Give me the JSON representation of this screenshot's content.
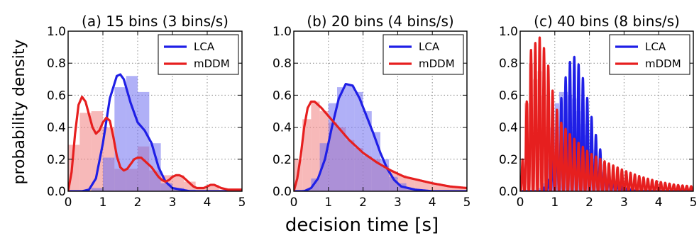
{
  "figure": {
    "ylabel": "probability density",
    "xlabel": "decision time [s]",
    "colors": {
      "LCA": "#1f1fe6",
      "mDDM": "#e61f1f",
      "LCA_fill": "#7070f0",
      "mDDM_fill": "#f08080"
    }
  },
  "chart_data": [
    {
      "type": "area",
      "title": "(a) 15 bins (3 bins/s)",
      "xlim": [
        0,
        5
      ],
      "ylim": [
        0,
        1.0
      ],
      "xticks": [
        "0",
        "1",
        "2",
        "3",
        "4",
        "5"
      ],
      "yticks": [
        "0.0",
        "0.2",
        "0.4",
        "0.6",
        "0.8",
        "1.0"
      ],
      "grid": true,
      "legend": "top-right",
      "histograms": [
        {
          "name": "mDDM",
          "bin_width": 0.3333,
          "x0": 0,
          "values": [
            0.29,
            0.49,
            0.5,
            0.4,
            0.14,
            0.14,
            0.28,
            0.13,
            0.1,
            0.1,
            0.06,
            0.02,
            0.04,
            0.01,
            0.01
          ]
        },
        {
          "name": "LCA",
          "bin_width": 0.3333,
          "x0": 0,
          "values": [
            0.0,
            0.0,
            0.02,
            0.21,
            0.65,
            0.72,
            0.62,
            0.3,
            0.05,
            0.02,
            0.01,
            0.0,
            0.0,
            0.0,
            0.0
          ]
        }
      ],
      "series": [
        {
          "name": "LCA",
          "x": [
            0.0,
            0.4,
            0.6,
            0.8,
            1.0,
            1.2,
            1.4,
            1.5,
            1.6,
            1.8,
            2.0,
            2.2,
            2.4,
            2.6,
            2.8,
            3.0,
            3.5,
            4.0,
            5.0
          ],
          "y": [
            0.0,
            0.0,
            0.01,
            0.08,
            0.3,
            0.58,
            0.72,
            0.73,
            0.7,
            0.55,
            0.43,
            0.38,
            0.3,
            0.15,
            0.06,
            0.02,
            0.0,
            0.0,
            0.0
          ]
        },
        {
          "name": "mDDM",
          "x": [
            0.0,
            0.1,
            0.2,
            0.3,
            0.4,
            0.5,
            0.6,
            0.7,
            0.8,
            0.9,
            1.0,
            1.1,
            1.2,
            1.3,
            1.4,
            1.5,
            1.6,
            1.7,
            1.8,
            1.9,
            2.0,
            2.1,
            2.2,
            2.3,
            2.4,
            2.5,
            2.6,
            2.7,
            2.8,
            2.9,
            3.0,
            3.1,
            3.2,
            3.3,
            3.4,
            3.5,
            3.6,
            3.7,
            3.8,
            3.9,
            4.0,
            4.1,
            4.2,
            4.4,
            4.6,
            4.8,
            5.0
          ],
          "y": [
            0.0,
            0.12,
            0.36,
            0.54,
            0.59,
            0.56,
            0.48,
            0.4,
            0.36,
            0.38,
            0.43,
            0.46,
            0.44,
            0.34,
            0.22,
            0.15,
            0.13,
            0.14,
            0.17,
            0.2,
            0.21,
            0.21,
            0.19,
            0.17,
            0.15,
            0.12,
            0.09,
            0.07,
            0.06,
            0.07,
            0.09,
            0.1,
            0.1,
            0.09,
            0.07,
            0.05,
            0.03,
            0.02,
            0.02,
            0.02,
            0.03,
            0.04,
            0.04,
            0.02,
            0.01,
            0.01,
            0.01
          ]
        }
      ]
    },
    {
      "type": "area",
      "title": "(b) 20 bins (4 bins/s)",
      "xlim": [
        0,
        5
      ],
      "ylim": [
        0,
        1.0
      ],
      "xticks": [
        "0",
        "1",
        "2",
        "3",
        "4",
        "5"
      ],
      "yticks": [
        "0.0",
        "0.2",
        "0.4",
        "0.6",
        "0.8",
        "1.0"
      ],
      "grid": true,
      "legend": "top-right",
      "histograms": [
        {
          "name": "mDDM",
          "bin_width": 0.25,
          "x0": 0,
          "values": [
            0.2,
            0.45,
            0.56,
            0.5,
            0.43,
            0.4,
            0.32,
            0.27,
            0.22,
            0.2,
            0.16,
            0.12,
            0.1,
            0.08,
            0.07,
            0.06,
            0.05,
            0.04,
            0.03,
            0.02
          ]
        },
        {
          "name": "LCA",
          "bin_width": 0.25,
          "x0": 0,
          "values": [
            0.0,
            0.01,
            0.08,
            0.3,
            0.55,
            0.65,
            0.66,
            0.62,
            0.5,
            0.37,
            0.2,
            0.09,
            0.05,
            0.02,
            0.01,
            0.0,
            0.0,
            0.0,
            0.0,
            0.0
          ]
        }
      ],
      "series": [
        {
          "name": "LCA",
          "x": [
            0.0,
            0.3,
            0.5,
            0.7,
            0.9,
            1.1,
            1.3,
            1.5,
            1.7,
            1.9,
            2.1,
            2.3,
            2.5,
            2.7,
            2.9,
            3.1,
            3.5,
            4.0,
            5.0
          ],
          "y": [
            0.0,
            0.0,
            0.02,
            0.08,
            0.2,
            0.4,
            0.58,
            0.67,
            0.66,
            0.58,
            0.47,
            0.36,
            0.24,
            0.14,
            0.07,
            0.03,
            0.01,
            0.0,
            0.0
          ]
        },
        {
          "name": "mDDM",
          "x": [
            0.0,
            0.1,
            0.2,
            0.3,
            0.4,
            0.5,
            0.6,
            0.8,
            1.0,
            1.2,
            1.4,
            1.6,
            1.8,
            2.0,
            2.4,
            2.8,
            3.2,
            3.6,
            4.0,
            4.5,
            5.0
          ],
          "y": [
            0.0,
            0.08,
            0.22,
            0.4,
            0.52,
            0.56,
            0.56,
            0.52,
            0.47,
            0.42,
            0.37,
            0.32,
            0.28,
            0.24,
            0.18,
            0.13,
            0.09,
            0.07,
            0.05,
            0.03,
            0.02
          ]
        }
      ]
    },
    {
      "type": "area",
      "title": "(c) 40 bins (8 bins/s)",
      "xlim": [
        0,
        5
      ],
      "ylim": [
        0,
        1.0
      ],
      "xticks": [
        "0",
        "1",
        "2",
        "3",
        "4",
        "5"
      ],
      "yticks": [
        "0.0",
        "0.2",
        "0.4",
        "0.6",
        "0.8",
        "1.0"
      ],
      "grid": true,
      "legend": "top-right",
      "histograms": [
        {
          "name": "mDDM",
          "bin_width": 0.125,
          "x0": 0,
          "values": [
            0.1,
            0.55,
            0.8,
            0.7,
            0.75,
            0.6,
            0.4,
            0.3,
            0.4,
            0.3,
            0.22,
            0.18,
            0.2,
            0.16,
            0.15,
            0.12,
            0.1,
            0.09,
            0.08,
            0.07,
            0.06,
            0.05,
            0.05,
            0.04,
            0.04,
            0.03,
            0.03,
            0.03,
            0.02,
            0.02,
            0.02,
            0.02,
            0.01,
            0.01,
            0.01,
            0.01,
            0.01,
            0.01,
            0.01,
            0.01
          ]
        },
        {
          "name": "LCA",
          "bin_width": 0.125,
          "x0": 0,
          "values": [
            0,
            0,
            0,
            0,
            0.02,
            0.05,
            0.2,
            0.4,
            0.55,
            0.62,
            0.62,
            0.6,
            0.58,
            0.5,
            0.42,
            0.35,
            0.26,
            0.2,
            0.12,
            0.08,
            0.04,
            0.02,
            0.01,
            0,
            0,
            0,
            0,
            0,
            0,
            0,
            0,
            0,
            0,
            0,
            0,
            0,
            0,
            0,
            0,
            0
          ]
        }
      ],
      "series": [
        {
          "name": "LCA",
          "model": "oscillating",
          "x": [
            0.0,
            0.6,
            0.8,
            1.0,
            1.2,
            1.4,
            1.6,
            1.8,
            2.0,
            2.2,
            2.4,
            2.6,
            2.8,
            3.0,
            3.4,
            4.0,
            5.0
          ],
          "y": [
            0.0,
            0.0,
            0.05,
            0.3,
            0.6,
            0.8,
            0.85,
            0.72,
            0.52,
            0.34,
            0.2,
            0.1,
            0.05,
            0.02,
            0.0,
            0.0,
            0.0
          ],
          "period": 0.125,
          "phase": 0.0625
        },
        {
          "name": "mDDM",
          "model": "oscillating",
          "x": [
            0.0,
            0.15,
            0.3,
            0.5,
            0.6,
            0.8,
            1.0,
            1.2,
            1.5,
            1.8,
            2.0,
            2.5,
            3.0,
            3.5,
            4.0,
            4.5,
            5.0
          ],
          "y": [
            0.0,
            0.45,
            0.88,
            0.95,
            0.97,
            0.8,
            0.55,
            0.42,
            0.34,
            0.28,
            0.24,
            0.18,
            0.13,
            0.09,
            0.06,
            0.04,
            0.03
          ],
          "period": 0.125,
          "phase": 0.0625
        }
      ]
    }
  ]
}
